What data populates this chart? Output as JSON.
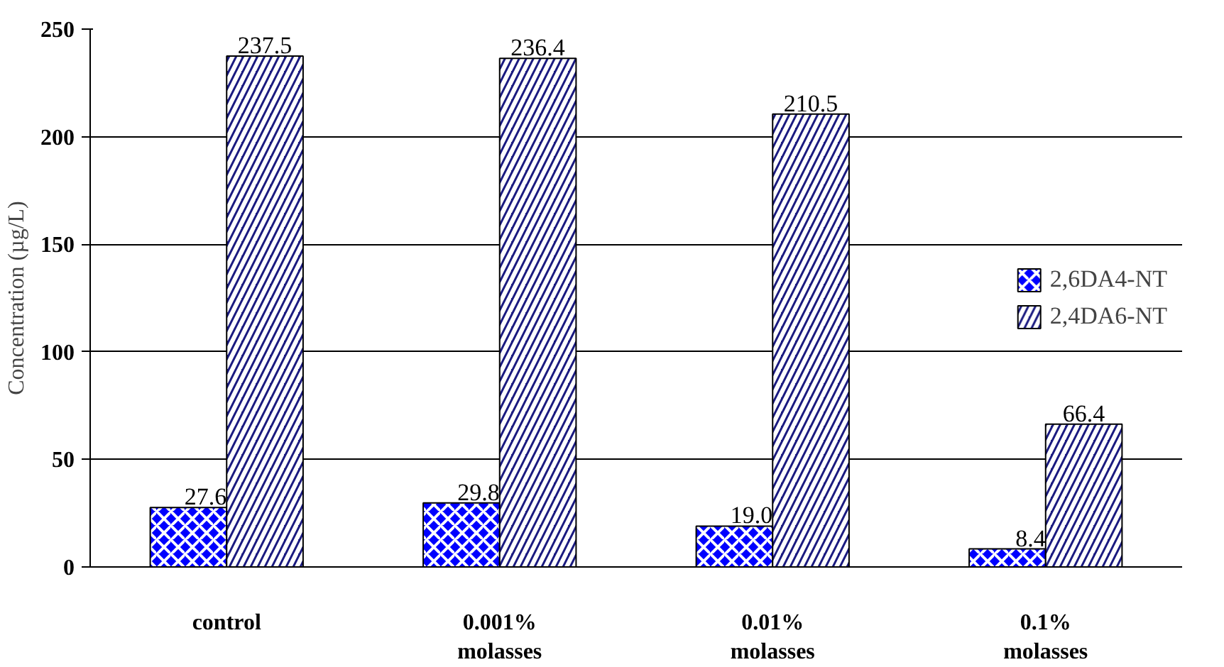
{
  "chart_data": {
    "type": "bar",
    "ylabel": "Concentration (µg/L)",
    "categories": [
      "control",
      "0.001%\nmolasses",
      "0.01%\nmolasses",
      "0.1%\nmolasses"
    ],
    "series": [
      {
        "name": "2,6DA4-NT",
        "color": "#0000ff",
        "values": [
          27.6,
          29.8,
          19.0,
          8.4
        ],
        "value_labels": [
          "27.6",
          "29.8",
          "19.0",
          "8.4"
        ]
      },
      {
        "name": "2,4DA6-NT",
        "color": "#1a1a80",
        "values": [
          237.5,
          236.4,
          210.5,
          66.4
        ],
        "value_labels": [
          "237.5",
          "236.4",
          "210.5",
          "66.4"
        ]
      }
    ],
    "ylim": [
      0,
      250
    ],
    "yticks": [
      0,
      50,
      100,
      150,
      200,
      250
    ],
    "grid": "y",
    "legend": "right"
  }
}
